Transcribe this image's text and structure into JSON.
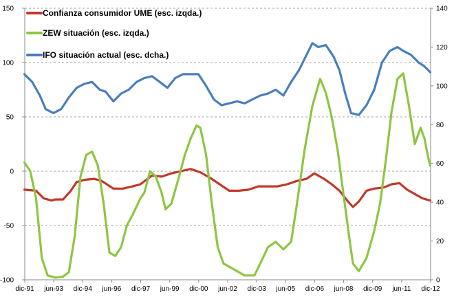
{
  "chart_data": {
    "type": "line",
    "title": "",
    "grid": "horizontal-dashed",
    "legend_position": "top-left",
    "x_tick_labels": [
      "dic-91",
      "jun-93",
      "dic-94",
      "jun-96",
      "dic-97",
      "jun-99",
      "dic-00",
      "jun-02",
      "dic-03",
      "jun-05",
      "dic-06",
      "jun-08",
      "dic-09",
      "jun-11",
      "dic-12"
    ],
    "y_left": {
      "range": [
        -100,
        150
      ],
      "ticks": [
        "150",
        "100",
        "50",
        "0",
        "-50",
        "-100"
      ]
    },
    "y_right": {
      "range": [
        0,
        140
      ],
      "ticks": [
        "140",
        "120",
        "100",
        "80",
        "60",
        "40",
        "20",
        "0"
      ]
    },
    "x_range": [
      1991.917,
      2012.917
    ],
    "series": [
      {
        "name": "Confianza consumidor UME (esc. izqda.)",
        "axis": "left",
        "color": "#c0392b",
        "points": [
          [
            1991.9,
            -17
          ],
          [
            1992.5,
            -18
          ],
          [
            1992.9,
            -25
          ],
          [
            1993.3,
            -27
          ],
          [
            1993.5,
            -26
          ],
          [
            1993.9,
            -26
          ],
          [
            1994.3,
            -18
          ],
          [
            1994.6,
            -10
          ],
          [
            1995.0,
            -8
          ],
          [
            1995.5,
            -7
          ],
          [
            1995.9,
            -9
          ],
          [
            1996.5,
            -16
          ],
          [
            1997.0,
            -16
          ],
          [
            1997.5,
            -14
          ],
          [
            1997.9,
            -12
          ],
          [
            1998.5,
            -4
          ],
          [
            1999.0,
            -5
          ],
          [
            1999.5,
            -2
          ],
          [
            2000.0,
            0
          ],
          [
            2000.5,
            2
          ],
          [
            2001.0,
            -1
          ],
          [
            2001.5,
            -6
          ],
          [
            2002.0,
            -12
          ],
          [
            2002.5,
            -18
          ],
          [
            2003.0,
            -18
          ],
          [
            2003.5,
            -17
          ],
          [
            2004.0,
            -14
          ],
          [
            2004.5,
            -14
          ],
          [
            2005.0,
            -14
          ],
          [
            2005.5,
            -12
          ],
          [
            2006.0,
            -9
          ],
          [
            2006.5,
            -7
          ],
          [
            2006.9,
            -2
          ],
          [
            2007.4,
            -7
          ],
          [
            2007.8,
            -12
          ],
          [
            2008.2,
            -18
          ],
          [
            2008.6,
            -27
          ],
          [
            2008.9,
            -33
          ],
          [
            2009.2,
            -28
          ],
          [
            2009.6,
            -18
          ],
          [
            2010.0,
            -16
          ],
          [
            2010.5,
            -15
          ],
          [
            2010.9,
            -12
          ],
          [
            2011.3,
            -11
          ],
          [
            2011.7,
            -17
          ],
          [
            2012.1,
            -21
          ],
          [
            2012.5,
            -25
          ],
          [
            2012.9,
            -27
          ]
        ]
      },
      {
        "name": "ZEW situación (esc. izqda.)",
        "axis": "left",
        "color": "#8dc63f",
        "points": [
          [
            1991.9,
            8
          ],
          [
            1992.2,
            0
          ],
          [
            1992.5,
            -25
          ],
          [
            1992.8,
            -80
          ],
          [
            1993.1,
            -96
          ],
          [
            1993.5,
            -98
          ],
          [
            1993.9,
            -97
          ],
          [
            1994.2,
            -93
          ],
          [
            1994.5,
            -60
          ],
          [
            1994.8,
            -5
          ],
          [
            1995.1,
            15
          ],
          [
            1995.4,
            18
          ],
          [
            1995.7,
            5
          ],
          [
            1996.0,
            -30
          ],
          [
            1996.3,
            -75
          ],
          [
            1996.6,
            -78
          ],
          [
            1996.9,
            -70
          ],
          [
            1997.2,
            -50
          ],
          [
            1997.5,
            -40
          ],
          [
            1997.9,
            -25
          ],
          [
            1998.1,
            -20
          ],
          [
            1998.4,
            0
          ],
          [
            1998.7,
            -5
          ],
          [
            1999.0,
            -20
          ],
          [
            1999.2,
            -35
          ],
          [
            1999.5,
            -30
          ],
          [
            1999.9,
            -5
          ],
          [
            2000.2,
            15
          ],
          [
            2000.5,
            30
          ],
          [
            2000.8,
            42
          ],
          [
            2001.0,
            40
          ],
          [
            2001.3,
            15
          ],
          [
            2001.6,
            -30
          ],
          [
            2001.9,
            -70
          ],
          [
            2002.2,
            -85
          ],
          [
            2002.5,
            -88
          ],
          [
            2002.9,
            -92
          ],
          [
            2003.3,
            -96
          ],
          [
            2003.8,
            -96
          ],
          [
            2004.1,
            -85
          ],
          [
            2004.5,
            -70
          ],
          [
            2004.9,
            -65
          ],
          [
            2005.3,
            -72
          ],
          [
            2005.7,
            -65
          ],
          [
            2006.0,
            -30
          ],
          [
            2006.4,
            20
          ],
          [
            2006.8,
            60
          ],
          [
            2007.2,
            85
          ],
          [
            2007.5,
            72
          ],
          [
            2007.8,
            50
          ],
          [
            2008.1,
            20
          ],
          [
            2008.4,
            -20
          ],
          [
            2008.7,
            -60
          ],
          [
            2008.9,
            -85
          ],
          [
            2009.2,
            -92
          ],
          [
            2009.6,
            -80
          ],
          [
            2010.0,
            -55
          ],
          [
            2010.3,
            -30
          ],
          [
            2010.6,
            10
          ],
          [
            2010.9,
            55
          ],
          [
            2011.2,
            85
          ],
          [
            2011.5,
            90
          ],
          [
            2011.8,
            60
          ],
          [
            2012.1,
            25
          ],
          [
            2012.4,
            40
          ],
          [
            2012.6,
            30
          ],
          [
            2012.8,
            12
          ],
          [
            2012.9,
            5
          ]
        ]
      },
      {
        "name": "IFO situación actual (esc. dcha.)",
        "axis": "right",
        "color": "#4a7ebb",
        "points": [
          [
            1991.9,
            106
          ],
          [
            1992.3,
            102
          ],
          [
            1992.7,
            95
          ],
          [
            1993.0,
            88
          ],
          [
            1993.4,
            86
          ],
          [
            1993.8,
            88
          ],
          [
            1994.2,
            94
          ],
          [
            1994.6,
            99
          ],
          [
            1995.0,
            101
          ],
          [
            1995.4,
            102
          ],
          [
            1995.8,
            98
          ],
          [
            1996.1,
            97
          ],
          [
            1996.5,
            92
          ],
          [
            1996.9,
            96
          ],
          [
            1997.3,
            98
          ],
          [
            1997.7,
            102
          ],
          [
            1998.1,
            104
          ],
          [
            1998.5,
            105
          ],
          [
            1998.9,
            102
          ],
          [
            1999.3,
            99
          ],
          [
            1999.7,
            104
          ],
          [
            2000.1,
            106
          ],
          [
            2000.5,
            106
          ],
          [
            2000.9,
            106
          ],
          [
            2001.3,
            100
          ],
          [
            2001.7,
            93
          ],
          [
            2002.1,
            90
          ],
          [
            2002.5,
            91
          ],
          [
            2002.9,
            92
          ],
          [
            2003.3,
            91
          ],
          [
            2003.7,
            93
          ],
          [
            2004.1,
            95
          ],
          [
            2004.5,
            96
          ],
          [
            2004.9,
            98
          ],
          [
            2005.3,
            95
          ],
          [
            2005.7,
            102
          ],
          [
            2006.1,
            108
          ],
          [
            2006.5,
            116
          ],
          [
            2006.8,
            122
          ],
          [
            2007.1,
            120
          ],
          [
            2007.5,
            121
          ],
          [
            2007.9,
            115
          ],
          [
            2008.2,
            108
          ],
          [
            2008.5,
            96
          ],
          [
            2008.8,
            86
          ],
          [
            2009.2,
            85
          ],
          [
            2009.6,
            90
          ],
          [
            2010.0,
            98
          ],
          [
            2010.4,
            112
          ],
          [
            2010.8,
            118
          ],
          [
            2011.2,
            120
          ],
          [
            2011.5,
            118
          ],
          [
            2011.9,
            116
          ],
          [
            2012.3,
            112
          ],
          [
            2012.6,
            110
          ],
          [
            2012.9,
            107
          ]
        ]
      }
    ]
  }
}
